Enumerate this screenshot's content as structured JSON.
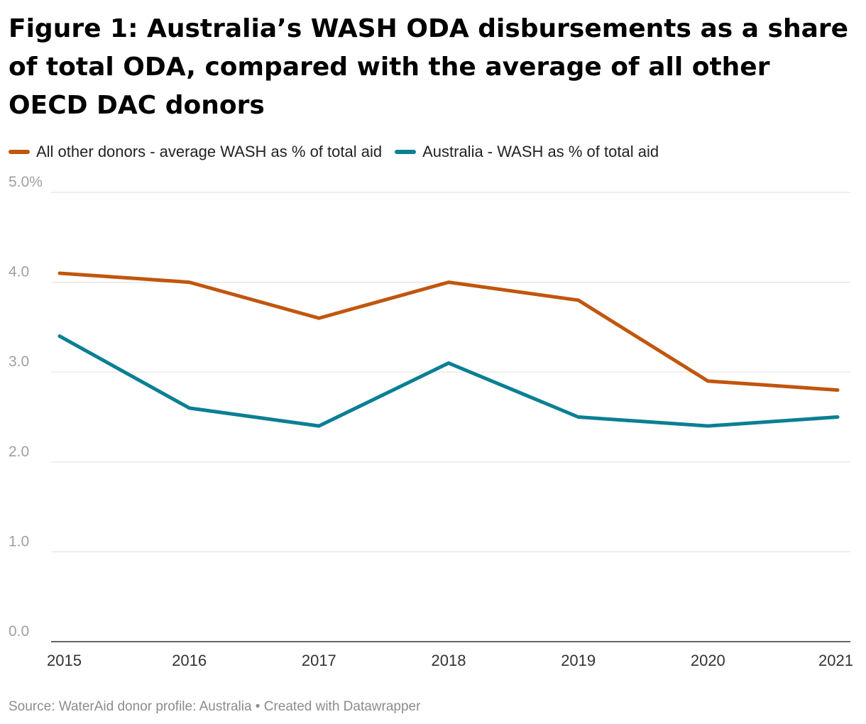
{
  "title": "Figure 1: Australia’s WASH ODA disbursements as a share of total ODA, compared with the average of all other OECD DAC donors",
  "source": "Source: WaterAid donor profile: Australia • Created with Datawrapper",
  "colors": {
    "other_donors": "#c0560d",
    "australia": "#0b7f93",
    "grid": "#e3e3e3",
    "axis": "#333333"
  },
  "chart_data": {
    "type": "line",
    "title": "Figure 1: Australia’s WASH ODA disbursements as a share of total ODA, compared with the average of all other OECD DAC donors",
    "x": [
      "2015",
      "2016",
      "2017",
      "2018",
      "2019",
      "2020",
      "2021"
    ],
    "ylim": [
      0,
      5
    ],
    "y_ticks": [
      "0.0",
      "1.0",
      "2.0",
      "3.0",
      "4.0",
      "5.0%"
    ],
    "grid": true,
    "legend_position": "top-left",
    "series": [
      {
        "name": "All other donors - average WASH as % of total aid",
        "color": "#c0560d",
        "values": [
          4.1,
          4.0,
          3.6,
          4.0,
          3.8,
          2.9,
          2.8
        ]
      },
      {
        "name": "Australia - WASH as % of total aid",
        "color": "#0b7f93",
        "values": [
          3.4,
          2.6,
          2.4,
          3.1,
          2.5,
          2.4,
          2.5
        ]
      }
    ]
  }
}
